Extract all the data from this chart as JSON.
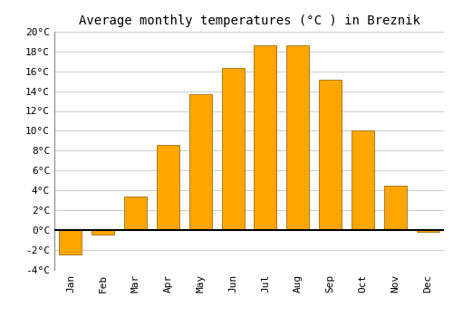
{
  "title": "Average monthly temperatures (°C ) in Breznik",
  "months": [
    "Jan",
    "Feb",
    "Mar",
    "Apr",
    "May",
    "Jun",
    "Jul",
    "Aug",
    "Sep",
    "Oct",
    "Nov",
    "Dec"
  ],
  "values": [
    -2.5,
    -0.5,
    3.4,
    8.6,
    13.7,
    16.3,
    18.6,
    18.6,
    15.2,
    10.0,
    4.5,
    -0.2
  ],
  "bar_color": "#FFA500",
  "bar_edge_color": "#A07010",
  "ylim": [
    -4,
    20
  ],
  "yticks": [
    -4,
    -2,
    0,
    2,
    4,
    6,
    8,
    10,
    12,
    14,
    16,
    18,
    20
  ],
  "ytick_labels": [
    "-4°C",
    "-2°C",
    "0°C",
    "2°C",
    "4°C",
    "6°C",
    "8°C",
    "10°C",
    "12°C",
    "14°C",
    "16°C",
    "18°C",
    "20°C"
  ],
  "background_color": "#ffffff",
  "grid_color": "#cccccc",
  "title_fontsize": 10,
  "tick_fontsize": 8,
  "zero_line_color": "#000000",
  "bar_width": 0.7
}
